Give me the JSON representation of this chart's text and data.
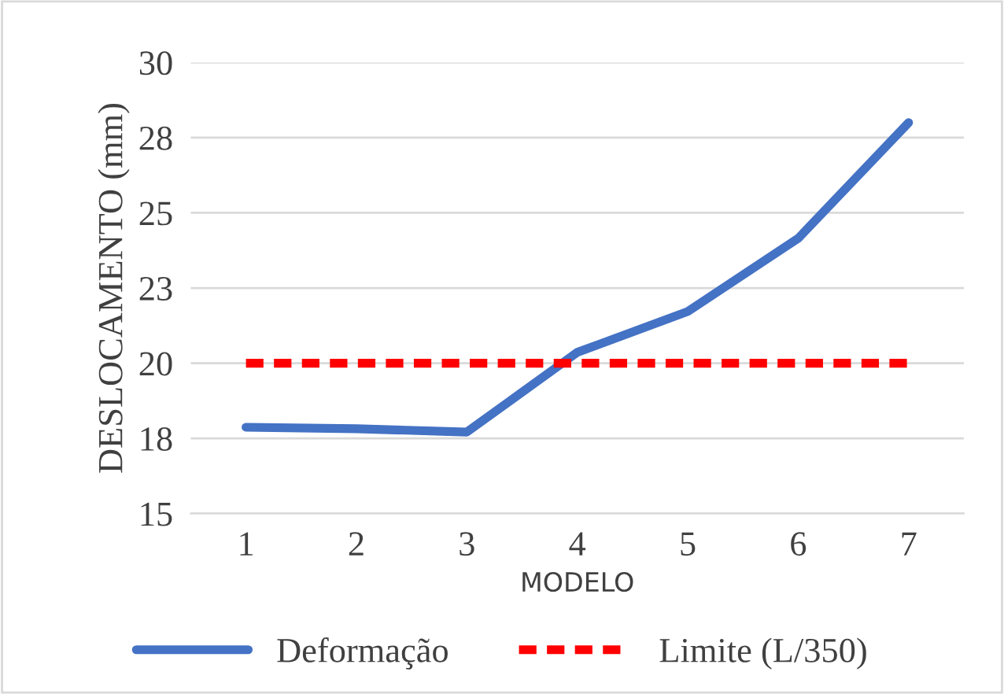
{
  "chart_data": {
    "type": "line",
    "xlabel": "MODELO",
    "ylabel": "DESLOCAMENTO (mm)",
    "categories": [
      "1",
      "2",
      "3",
      "4",
      "5",
      "6",
      "7"
    ],
    "series": [
      {
        "name": "Deformação",
        "color": "#4472c4",
        "line_style": "solid",
        "values": [
          17.87,
          17.82,
          17.71,
          20.36,
          21.72,
          24.15,
          28.0
        ]
      },
      {
        "name": "Limite (L/350)",
        "color": "#ff0000",
        "line_style": "dashed",
        "values": [
          20,
          20,
          20,
          20,
          20,
          20,
          20
        ]
      }
    ],
    "ylim": [
      15,
      30
    ],
    "yticks": [
      15,
      {
        "value": 17.5,
        "label": "18"
      },
      20,
      {
        "value": 22.5,
        "label": "23"
      },
      25,
      {
        "value": 27.5,
        "label": "28"
      },
      30
    ],
    "grid": "y",
    "legend": "bottom",
    "marker": "none"
  }
}
